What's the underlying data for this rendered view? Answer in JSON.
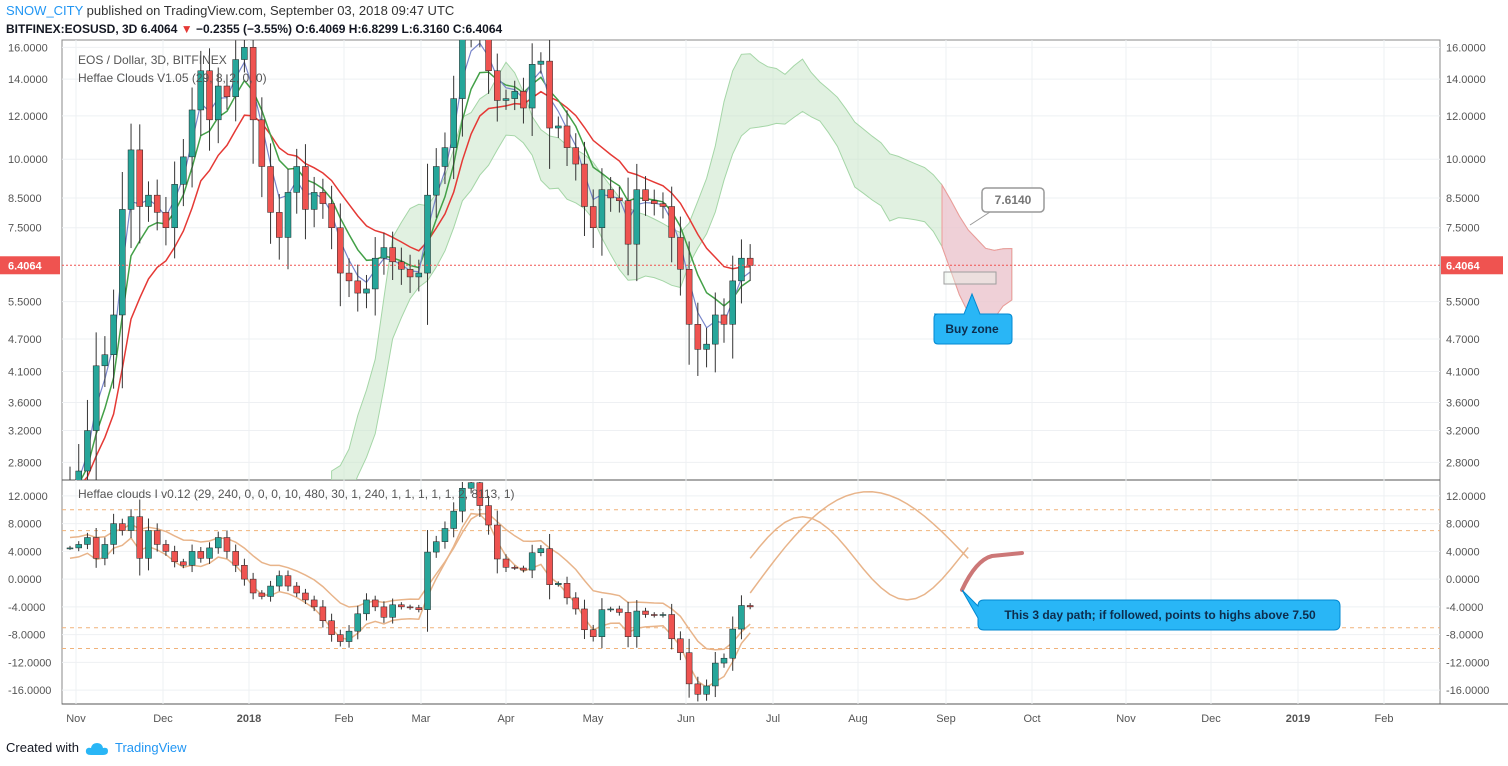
{
  "header": {
    "author": "SNOW_CITY",
    "published": " published on TradingView.com, September 03, 2018 09:47 UTC",
    "symbol": "BITFINEX:EOSUSD, 3D",
    "price": "6.4064",
    "down_arrow": "▼",
    "change": "−0.2355 (−3.55%)",
    "ohlc": "O:6.4069 H:6.8299 L:6.3160 C:6.4064"
  },
  "footer": {
    "created_with": "Created with",
    "brand": "TradingView",
    "icon": "tradingview-cloud-icon"
  },
  "colors": {
    "up": "#26a69a",
    "down": "#ef5350",
    "red_line": "#e53935",
    "green_line": "#43a047",
    "blue_line": "#7986cb",
    "osc_line": "#e8b48a",
    "callout": "#29b6f6",
    "last_price": "#ef5350"
  },
  "chart_data": [
    {
      "type": "candlestick",
      "title": "EOS / Dollar, 3D, BITFINEX",
      "indicator_label": "Heffae Clouds V1.05 (29, 8, 2, 0, 0)",
      "scale": "log",
      "ylim": [
        2.6,
        16.5
      ],
      "y_ticks": [
        "16.0000",
        "14.0000",
        "12.0000",
        "10.0000",
        "8.5000",
        "7.5000",
        "6.4064",
        "5.5000",
        "4.7000",
        "4.1000",
        "3.6000",
        "3.2000",
        "2.8000"
      ],
      "last_price": "6.4064",
      "x_ticks": [
        "Nov",
        "Dec",
        "2018",
        "Feb",
        "Mar",
        "Apr",
        "May",
        "Jun",
        "Jul",
        "Aug",
        "Sep",
        "Oct",
        "Nov",
        "Dec",
        "2019",
        "Feb"
      ],
      "close_series": [
        2.5,
        2.7,
        3.2,
        4.2,
        4.4,
        5.2,
        8.1,
        10.4,
        8.2,
        8.6,
        8.0,
        7.5,
        9.0,
        10.1,
        12.3,
        14.5,
        11.8,
        13.6,
        13.0,
        15.2,
        16.0,
        11.8,
        9.7,
        8.0,
        7.2,
        8.7,
        9.7,
        8.1,
        8.7,
        8.3,
        7.5,
        6.2,
        6.0,
        5.7,
        5.8,
        6.6,
        6.9,
        6.5,
        6.3,
        6.1,
        6.2,
        8.6,
        9.7,
        10.5,
        12.9,
        16.8,
        17.5,
        16.8,
        14.5,
        12.8,
        12.9,
        13.3,
        12.4,
        14.9,
        15.1,
        11.4,
        11.5,
        10.5,
        9.8,
        8.2,
        7.5,
        8.8,
        8.5,
        8.4,
        7.0,
        8.8,
        8.4,
        8.3,
        8.2,
        7.2,
        6.3,
        5.0,
        4.5,
        4.6,
        5.2,
        5.0,
        6.0,
        6.6,
        6.4
      ],
      "annotations": [
        {
          "text": "7.6140"
        },
        {
          "text": "Buy zone"
        }
      ]
    },
    {
      "type": "candlestick",
      "indicator_label": "Heffae clouds I v0.12 (29, 240, 0, 0, 0, 10, 480, 30, 1, 240, 1, 1, 1, 1, 1, 2, 8113, 1)",
      "ylim": [
        -18,
        14
      ],
      "y_ticks": [
        "12.0000",
        "8.0000",
        "4.0000",
        "0.0000",
        "-4.0000",
        "-8.0000",
        "-12.0000",
        "-16.0000"
      ],
      "close_series": [
        4.5,
        5,
        6,
        3,
        5,
        8,
        7,
        9,
        3,
        7,
        5,
        4,
        2.5,
        2,
        4,
        3,
        4.5,
        6,
        4,
        2,
        0,
        -2,
        -2.5,
        -1,
        0.5,
        -1,
        -2,
        -3,
        -4,
        -6,
        -8,
        -9,
        -7.5,
        -5,
        -3,
        -4,
        -5.5,
        -3.7,
        -4,
        -4.1,
        -4.4,
        3.9,
        5.4,
        7.3,
        9.8,
        13.1,
        13.9,
        10.6,
        7.8,
        2.9,
        1.7,
        1.6,
        1.3,
        3.8,
        4.4,
        -0.8,
        -0.6,
        -2.7,
        -4.3,
        -7.3,
        -8.3,
        -4.4,
        -4.3,
        -4.8,
        -8.3,
        -4.6,
        -5.1,
        -5.2,
        -5.1,
        -8.6,
        -10.6,
        -15.1,
        -16.6,
        -15.4,
        -12.1,
        -11.4,
        -7.2,
        -3.8,
        -4.0
      ],
      "annotations": [
        {
          "text": "This 3 day path; if followed, points to highs above 7.50"
        }
      ]
    }
  ]
}
